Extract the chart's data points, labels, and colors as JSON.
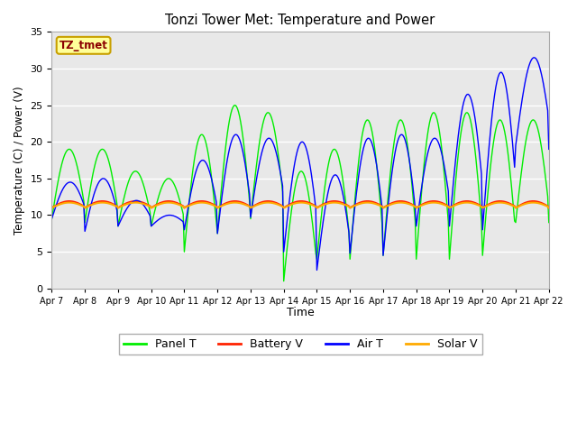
{
  "title": "Tonzi Tower Met: Temperature and Power",
  "xlabel": "Time",
  "ylabel": "Temperature (C) / Power (V)",
  "ylim": [
    0,
    35
  ],
  "bg_color": "#ffffff",
  "plot_bg": "#e8e8e8",
  "annotation_text": "TZ_tmet",
  "annotation_color": "#8b0000",
  "annotation_bg": "#ffff99",
  "annotation_border": "#c8a000",
  "xtick_labels": [
    "Apr 7",
    "Apr 8",
    "Apr 9",
    "Apr 10",
    "Apr 11",
    "Apr 12",
    "Apr 13",
    "Apr 14",
    "Apr 15",
    "Apr 16",
    "Apr 17",
    "Apr 18",
    "Apr 19",
    "Apr 20",
    "Apr 21",
    "Apr 22"
  ],
  "colors": {
    "panel_t": "#00ee00",
    "battery_v": "#ff2200",
    "air_t": "#0000ff",
    "solar_v": "#ffaa00"
  },
  "legend_labels": [
    "Panel T",
    "Battery V",
    "Air T",
    "Solar V"
  ],
  "panel_t_peaks": [
    19,
    9.5,
    19,
    9.0,
    16,
    8.5,
    10,
    8.5,
    15,
    5.0,
    21,
    5.5,
    25,
    7.5,
    24,
    9.5,
    16,
    1.0,
    19,
    4.0,
    23,
    4.0,
    23,
    4.5,
    24,
    4.0,
    23,
    4.0,
    23,
    4.5,
    9
  ],
  "air_t_peaks": [
    14.5,
    9.5,
    15,
    7.8,
    12,
    8.5,
    10,
    8.5,
    17.5,
    8.0,
    21,
    7.5,
    20.5,
    9.7,
    20,
    5.0,
    15.5,
    2.5,
    20.5,
    4.8,
    21,
    4.5,
    20.5,
    8.5,
    26.5,
    8.5,
    29.5,
    8.0,
    31.5,
    19.5,
    19
  ],
  "battery_base": 11.0,
  "solar_base": 11.0
}
